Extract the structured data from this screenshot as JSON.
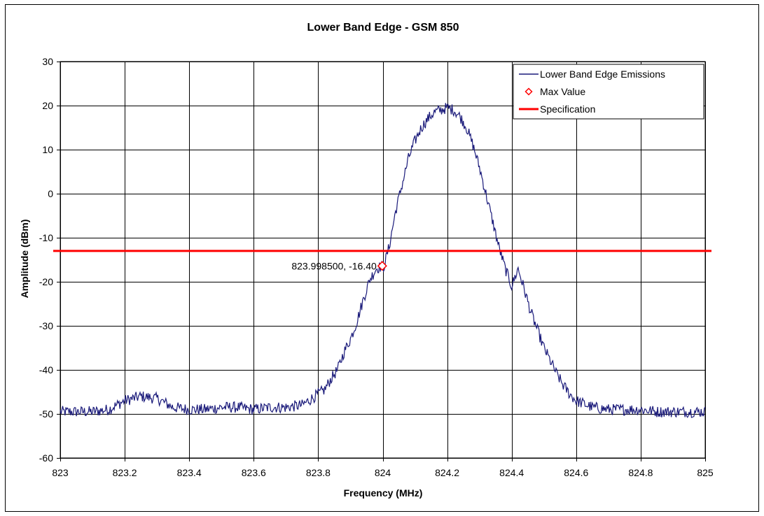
{
  "chart_data": {
    "type": "line",
    "title": "Lower Band Edge - GSM 850",
    "xlabel": "Frequency (MHz)",
    "ylabel": "Amplitude (dBm)",
    "xlim": [
      823,
      825
    ],
    "ylim": [
      -60,
      30
    ],
    "x_ticks": [
      823,
      823.2,
      823.4,
      823.6,
      823.8,
      824,
      824.2,
      824.4,
      824.6,
      824.8,
      825
    ],
    "x_tick_labels": [
      "823",
      "823.2",
      "823.4",
      "823.6",
      "823.8",
      "824",
      "824.2",
      "824.4",
      "824.6",
      "824.8",
      "825"
    ],
    "y_ticks": [
      -60,
      -50,
      -40,
      -30,
      -20,
      -10,
      0,
      10,
      20,
      30
    ],
    "y_tick_labels": [
      "-60",
      "-50",
      "-40",
      "-30",
      "-20",
      "-10",
      "0",
      "10",
      "20",
      "30"
    ],
    "grid": true,
    "legend_position": "top-right",
    "series": [
      {
        "name": "Lower Band Edge Emissions",
        "kind": "line",
        "color": "#1a1a7a",
        "x": [
          823.0,
          823.05,
          823.1,
          823.15,
          823.2,
          823.25,
          823.3,
          823.35,
          823.4,
          823.45,
          823.5,
          823.55,
          823.6,
          823.65,
          823.7,
          823.75,
          823.8,
          823.82,
          823.84,
          823.86,
          823.88,
          823.9,
          823.92,
          823.94,
          823.96,
          823.98,
          823.9985,
          824.0,
          824.02,
          824.04,
          824.06,
          824.08,
          824.1,
          824.12,
          824.14,
          824.16,
          824.18,
          824.2,
          824.22,
          824.24,
          824.26,
          824.28,
          824.3,
          824.32,
          824.34,
          824.36,
          824.38,
          824.4,
          824.42,
          824.44,
          824.46,
          824.48,
          824.5,
          824.52,
          824.54,
          824.56,
          824.58,
          824.6,
          824.65,
          824.7,
          824.75,
          824.8,
          824.85,
          824.9,
          824.95,
          825.0
        ],
        "y": [
          -49.5,
          -49.5,
          -49.5,
          -49.0,
          -47.0,
          -46.0,
          -46.5,
          -48.5,
          -49.0,
          -49.0,
          -48.5,
          -48.5,
          -49.0,
          -48.5,
          -48.5,
          -48.0,
          -45.5,
          -44.5,
          -42.0,
          -40.0,
          -36.0,
          -33.0,
          -29.0,
          -24.0,
          -19.5,
          -17.0,
          -16.4,
          -17.5,
          -12.0,
          -4.0,
          2.0,
          8.0,
          12.0,
          15.0,
          17.0,
          18.5,
          19.0,
          19.5,
          19.0,
          17.5,
          15.0,
          11.0,
          6.0,
          0.0,
          -6.0,
          -12.0,
          -17.0,
          -21.0,
          -17.0,
          -22.0,
          -27.0,
          -31.0,
          -35.0,
          -38.0,
          -41.0,
          -43.5,
          -45.5,
          -47.0,
          -48.5,
          -49.0,
          -49.0,
          -49.0,
          -49.5,
          -49.5,
          -49.5,
          -49.5
        ]
      },
      {
        "name": "Max Value",
        "kind": "marker",
        "color": "#ff0000",
        "x": [
          823.9985
        ],
        "y": [
          -16.4
        ]
      },
      {
        "name": "Specification",
        "kind": "hline",
        "color": "#ff0000",
        "y": [
          -13
        ]
      }
    ],
    "annotations": [
      {
        "text": "823.998500, -16.40",
        "x": 823.9985,
        "y": -16.4
      }
    ]
  }
}
